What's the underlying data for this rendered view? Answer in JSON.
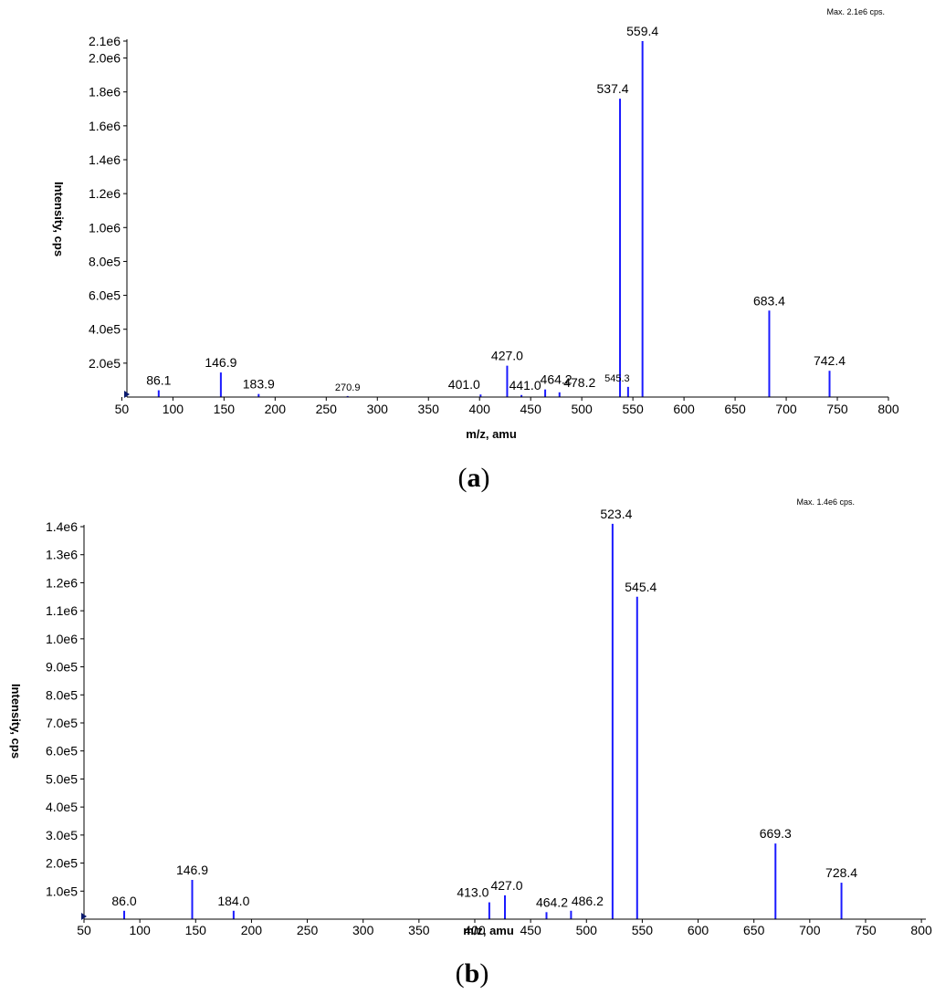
{
  "chart_data": [
    {
      "type": "bar",
      "panel_label": "a",
      "max_label": "Max. 2.1e6 cps.",
      "xlabel": "m/z, amu",
      "ylabel": "Intensity, cps",
      "xlim": [
        50,
        800
      ],
      "ylim": [
        0,
        2100000
      ],
      "x_ticks": [
        "50",
        "100",
        "150",
        "200",
        "250",
        "300",
        "350",
        "400",
        "450",
        "500",
        "550",
        "600",
        "650",
        "700",
        "750",
        "800"
      ],
      "y_ticks": [
        {
          "value": 200000,
          "label": "2.0e5"
        },
        {
          "value": 400000,
          "label": "4.0e5"
        },
        {
          "value": 600000,
          "label": "6.0e5"
        },
        {
          "value": 800000,
          "label": "8.0e5"
        },
        {
          "value": 1000000,
          "label": "1.0e6"
        },
        {
          "value": 1200000,
          "label": "1.2e6"
        },
        {
          "value": 1400000,
          "label": "1.4e6"
        },
        {
          "value": 1600000,
          "label": "1.6e6"
        },
        {
          "value": 1800000,
          "label": "1.8e6"
        },
        {
          "value": 2000000,
          "label": "2.0e6"
        },
        {
          "value": 2100000,
          "label": "2.1e6"
        }
      ],
      "peaks": [
        {
          "mz": 86.1,
          "intensity": 40000,
          "label": "86.1"
        },
        {
          "mz": 146.9,
          "intensity": 145000,
          "label": "146.9"
        },
        {
          "mz": 183.9,
          "intensity": 18000,
          "label": "183.9"
        },
        {
          "mz": 270.9,
          "intensity": 6000,
          "label": "270.9",
          "small": true
        },
        {
          "mz": 401.0,
          "intensity": 15000,
          "label": "401.0"
        },
        {
          "mz": 427.0,
          "intensity": 185000,
          "label": "427.0"
        },
        {
          "mz": 441.0,
          "intensity": 12000,
          "label": "441.0"
        },
        {
          "mz": 464.2,
          "intensity": 45000,
          "label": "464.2"
        },
        {
          "mz": 478.2,
          "intensity": 28000,
          "label": "478.2"
        },
        {
          "mz": 537.4,
          "intensity": 1760000,
          "label": "537.4"
        },
        {
          "mz": 545.3,
          "intensity": 60000,
          "label": "545.3",
          "small": true
        },
        {
          "mz": 559.4,
          "intensity": 2100000,
          "label": "559.4"
        },
        {
          "mz": 683.4,
          "intensity": 510000,
          "label": "683.4"
        },
        {
          "mz": 742.4,
          "intensity": 155000,
          "label": "742.4"
        }
      ]
    },
    {
      "type": "bar",
      "panel_label": "b",
      "max_label": "Max. 1.4e6 cps.",
      "xlabel": "m/z, amu",
      "ylabel": "Intensity, cps",
      "xlim": [
        50,
        800
      ],
      "ylim": [
        0,
        1400000
      ],
      "x_ticks": [
        "50",
        "100",
        "150",
        "200",
        "250",
        "300",
        "350",
        "400",
        "450",
        "500",
        "550",
        "600",
        "650",
        "700",
        "750",
        "800"
      ],
      "y_ticks": [
        {
          "value": 100000,
          "label": "1.0e5"
        },
        {
          "value": 200000,
          "label": "2.0e5"
        },
        {
          "value": 300000,
          "label": "3.0e5"
        },
        {
          "value": 400000,
          "label": "4.0e5"
        },
        {
          "value": 500000,
          "label": "5.0e5"
        },
        {
          "value": 600000,
          "label": "6.0e5"
        },
        {
          "value": 700000,
          "label": "7.0e5"
        },
        {
          "value": 800000,
          "label": "8.0e5"
        },
        {
          "value": 900000,
          "label": "9.0e5"
        },
        {
          "value": 1000000,
          "label": "1.0e6"
        },
        {
          "value": 1100000,
          "label": "1.1e6"
        },
        {
          "value": 1200000,
          "label": "1.2e6"
        },
        {
          "value": 1300000,
          "label": "1.3e6"
        },
        {
          "value": 1400000,
          "label": "1.4e6"
        }
      ],
      "peaks": [
        {
          "mz": 86.0,
          "intensity": 30000,
          "label": "86.0"
        },
        {
          "mz": 146.9,
          "intensity": 140000,
          "label": "146.9"
        },
        {
          "mz": 184.0,
          "intensity": 30000,
          "label": "184.0"
        },
        {
          "mz": 413.0,
          "intensity": 60000,
          "label": "413.0"
        },
        {
          "mz": 427.0,
          "intensity": 85000,
          "label": "427.0"
        },
        {
          "mz": 464.2,
          "intensity": 25000,
          "label": "464.2"
        },
        {
          "mz": 486.2,
          "intensity": 30000,
          "label": "486.2"
        },
        {
          "mz": 523.4,
          "intensity": 1410000,
          "label": "523.4"
        },
        {
          "mz": 545.4,
          "intensity": 1150000,
          "label": "545.4"
        },
        {
          "mz": 669.3,
          "intensity": 270000,
          "label": "669.3"
        },
        {
          "mz": 728.4,
          "intensity": 130000,
          "label": "728.4"
        }
      ]
    }
  ]
}
